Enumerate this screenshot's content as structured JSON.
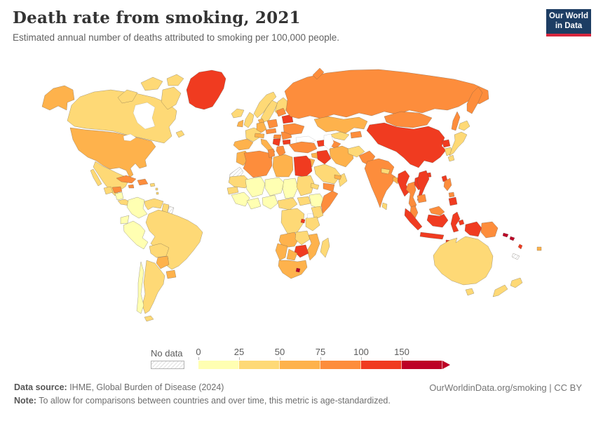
{
  "header": {
    "title": "Death rate from smoking, 2021",
    "subtitle": "Estimated annual number of deaths attributed to smoking per 100,000 people."
  },
  "logo": {
    "line1": "Our World",
    "line2": "in Data"
  },
  "palette": {
    "c1": "#FFFFB2",
    "c2": "#FED976",
    "c3": "#FEB24C",
    "c4": "#FD8D3C",
    "c5": "#F03B20",
    "c6": "#BD0026",
    "logo-bg": "#1d3d63",
    "logo-red": "#d7263d"
  },
  "legend": {
    "no_data_label": "No data",
    "bins": [
      {
        "label": "0",
        "color": "#FFFFB2"
      },
      {
        "label": "25",
        "color": "#FED976"
      },
      {
        "label": "50",
        "color": "#FEB24C"
      },
      {
        "label": "75",
        "color": "#FD8D3C"
      },
      {
        "label": "100",
        "color": "#F03B20"
      },
      {
        "label": "150",
        "color": "#BD0026"
      }
    ],
    "arrow_color": "#BD0026"
  },
  "footer": {
    "data_source_label": "Data source:",
    "data_source_text": " IHME, Global Burden of Disease (2024)",
    "note_label": "Note:",
    "note_text": " To allow for comparisons between countries and over time, this metric is age-standardized.",
    "link_text": "OurWorldinData.org/smoking | CC BY"
  },
  "chart_data": {
    "type": "choropleth_map",
    "title": "Death rate from smoking, 2021",
    "unit": "deaths per 100,000 people",
    "legend_bins": [
      {
        "range": "0-25",
        "color": "#FFFFB2"
      },
      {
        "range": "25-50",
        "color": "#FED976"
      },
      {
        "range": "50-75",
        "color": "#FEB24C"
      },
      {
        "range": "75-100",
        "color": "#FD8D3C"
      },
      {
        "range": "100-150",
        "color": "#F03B20"
      },
      {
        "range": "150+",
        "color": "#BD0026"
      }
    ],
    "country_values": {
      "United States": "50-75",
      "Canada": "25-50",
      "Alaska (US)": "50-75",
      "Greenland": "100-150",
      "Mexico": "25-50",
      "Guatemala": "25-50",
      "Honduras": "75-100",
      "Nicaragua": "0-25",
      "Cuba": "75-100",
      "Jamaica": "75-100",
      "Dominican Republic": "75-100",
      "Colombia": "0-25",
      "Venezuela": "25-50",
      "Guyana": "25-50",
      "French Guiana": "No data",
      "Ecuador": "0-25",
      "Peru": "0-25",
      "Brazil": "25-50",
      "Bolivia": "25-50",
      "Paraguay": "50-75",
      "Uruguay": "50-75",
      "Argentina": "25-50",
      "Chile": "0-25",
      "Iceland": "25-50",
      "United Kingdom": "25-50",
      "Ireland": "50-75",
      "France": "25-50",
      "Spain": "50-75",
      "Portugal": "50-75",
      "Germany": "50-75",
      "Denmark": "50-75",
      "Norway": "25-50",
      "Sweden": "25-50",
      "Finland": "25-50",
      "Poland": "75-100",
      "Czechia": "75-100",
      "Hungary": "75-100",
      "Romania": "75-100",
      "Serbia": "100-150",
      "Bulgaria": "100-150",
      "Greece": "75-100",
      "Italy": "50-75",
      "Ukraine": "75-100",
      "Belarus": "100-150",
      "Baltic states": "75-100",
      "Russia": "75-100",
      "Turkey": "75-100",
      "Morocco": "50-75",
      "Western Sahara": "No data",
      "Algeria": "75-100",
      "Tunisia": "75-100",
      "Libya": "50-75",
      "Egypt": "100-150",
      "Mauritania": "25-50",
      "Mali": "0-25",
      "Niger": "0-25",
      "Chad": "0-25",
      "Sudan": "25-50",
      "Nigeria": "0-25",
      "Ethiopia": "0-25",
      "Somalia": "75-100",
      "Kenya": "25-50",
      "DR Congo": "25-50",
      "Rwanda": "100-150",
      "Tanzania": "25-50",
      "Angola": "50-75",
      "Zambia": "25-50",
      "Zimbabwe": "100-150",
      "Botswana": "50-75",
      "Namibia": "50-75",
      "South Africa": "50-75",
      "Lesotho": "150+",
      "Mozambique": "50-75",
      "Madagascar": "25-50",
      "Saudi Arabia": "25-50",
      "Yemen": "75-100",
      "Oman": "25-50",
      "Iraq": "100-150",
      "Iran": "50-75",
      "Syria": "50-75",
      "Kazakhstan": "50-75",
      "Uzbekistan": "25-50",
      "Turkmenistan": "75-100",
      "Afghanistan": "25-50",
      "Pakistan": "75-100",
      "Mongolia": "75-100",
      "China": "100-150",
      "India": "75-100",
      "Nepal": "25-50",
      "Bangladesh": "50-75",
      "Sri Lanka": "25-50",
      "Myanmar": "100-150",
      "Thailand": "75-100",
      "Laos": "100-150",
      "Vietnam": "100-150",
      "Cambodia": "75-100",
      "Malaysia": "75-100",
      "Indonesia": "100-150",
      "Philippines": "75-100",
      "North Korea": "100-150",
      "South Korea": "25-50",
      "Japan": "25-50",
      "Taiwan": "100-150",
      "Papua New Guinea": "75-100",
      "Solomon Islands": "150+",
      "Vanuatu": "100-150",
      "New Caledonia": "No data",
      "Fiji": "50-75",
      "Australia": "25-50",
      "New Zealand": "25-50"
    }
  }
}
